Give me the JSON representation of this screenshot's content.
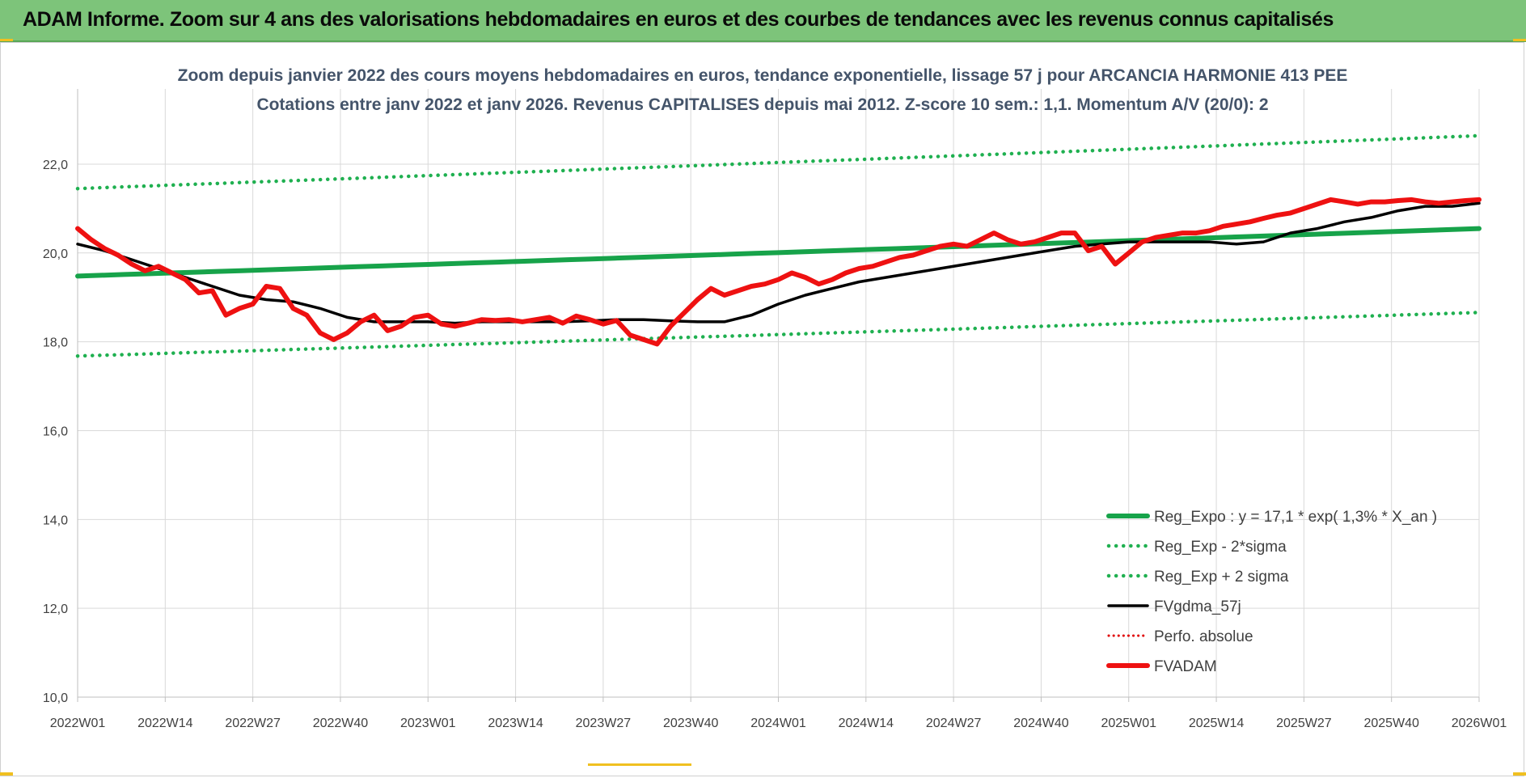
{
  "banner": {
    "title": "ADAM Informe. Zoom sur 4 ans des valorisations hebdomadaires en euros et des courbes de tendances avec les revenus connus capitalisés"
  },
  "colors": {
    "banner_bg": "#7dc47a",
    "reg_expo": "#17a34a",
    "sigma_bands": "#1fb050",
    "fvgdma": "#000000",
    "perfo": "#e00000",
    "fvadam": "#ee1111"
  },
  "chart_data": {
    "type": "line",
    "title": "Zoom depuis janvier 2022 des cours moyens hebdomadaires en euros, tendance exponentielle, lissage 57 j pour ARCANCIA HARMONIE 413 PEE",
    "subtitle": "Cotations entre janv 2022 et janv 2026. Revenus CAPITALISES depuis mai 2012. Z-score 10 sem.: 1,1. Momentum A/V (20/0): 2",
    "x_tick_labels": [
      "2022W01",
      "2022W14",
      "2022W27",
      "2022W40",
      "2023W01",
      "2023W14",
      "2023W27",
      "2023W40",
      "2024W01",
      "2024W14",
      "2024W27",
      "2024W40",
      "2025W01",
      "2025W14",
      "2025W27",
      "2025W40",
      "2026W01"
    ],
    "y_tick_labels": [
      "10,0",
      "12,0",
      "14,0",
      "16,0",
      "18,0",
      "20,0",
      "22,0"
    ],
    "ylim": [
      10,
      22.6
    ],
    "xlim": [
      0,
      208
    ],
    "grid": true,
    "legend_position": "bottom-right",
    "series": [
      {
        "name": "Reg_Expo : y = 17,1 * exp( 1,3% *  X_an )",
        "style": "solid-thick",
        "x": [
          0,
          208
        ],
        "y": [
          19.48,
          20.55
        ],
        "curve": "exponential"
      },
      {
        "name": "Reg_Exp - 2*sigma",
        "style": "dotted",
        "x": [
          0,
          208
        ],
        "y": [
          17.68,
          18.66
        ],
        "curve": "exponential"
      },
      {
        "name": "Reg_Exp + 2 sigma",
        "style": "dotted",
        "x": [
          0,
          208
        ],
        "y": [
          21.45,
          22.64
        ],
        "curve": "exponential"
      },
      {
        "name": "FVgdma_57j",
        "style": "solid",
        "x": [
          0,
          4,
          8,
          12,
          16,
          20,
          24,
          28,
          32,
          36,
          40,
          44,
          48,
          52,
          56,
          60,
          64,
          68,
          72,
          76,
          80,
          84,
          88,
          92,
          96,
          100,
          104,
          108,
          112,
          116,
          120,
          124,
          128,
          132,
          136,
          140,
          144,
          148,
          152,
          156,
          160,
          164,
          168,
          172,
          176,
          180,
          184,
          188,
          192,
          196,
          200,
          204,
          208
        ],
        "y": [
          20.2,
          20.05,
          19.85,
          19.65,
          19.45,
          19.25,
          19.05,
          18.95,
          18.9,
          18.75,
          18.55,
          18.45,
          18.45,
          18.45,
          18.42,
          18.45,
          18.45,
          18.45,
          18.45,
          18.47,
          18.5,
          18.5,
          18.47,
          18.45,
          18.45,
          18.6,
          18.85,
          19.05,
          19.2,
          19.35,
          19.45,
          19.55,
          19.65,
          19.75,
          19.85,
          19.95,
          20.05,
          20.15,
          20.2,
          20.25,
          20.25,
          20.25,
          20.25,
          20.2,
          20.25,
          20.45,
          20.55,
          20.7,
          20.8,
          20.95,
          21.05,
          21.05,
          21.12
        ]
      },
      {
        "name": "Perfo. absolue",
        "style": "dotted",
        "x": [],
        "y": []
      },
      {
        "name": "FVADAM",
        "style": "solid-thick",
        "x": [
          0,
          2,
          4,
          6,
          8,
          10,
          12,
          14,
          16,
          18,
          20,
          22,
          24,
          26,
          28,
          30,
          32,
          34,
          36,
          38,
          40,
          42,
          44,
          46,
          48,
          50,
          52,
          54,
          56,
          58,
          60,
          62,
          64,
          66,
          68,
          70,
          72,
          74,
          76,
          78,
          80,
          82,
          84,
          86,
          88,
          90,
          92,
          94,
          96,
          98,
          100,
          102,
          104,
          106,
          108,
          110,
          112,
          114,
          116,
          118,
          120,
          122,
          124,
          126,
          128,
          130,
          132,
          134,
          136,
          138,
          140,
          142,
          144,
          146,
          148,
          150,
          152,
          154,
          156,
          158,
          160,
          162,
          164,
          166,
          168,
          170,
          172,
          174,
          176,
          178,
          180,
          182,
          184,
          186,
          188,
          190,
          192,
          194,
          196,
          198,
          200,
          202,
          204,
          206,
          208
        ],
        "y": [
          20.55,
          20.3,
          20.1,
          19.95,
          19.75,
          19.6,
          19.7,
          19.55,
          19.4,
          19.1,
          19.15,
          18.6,
          18.75,
          18.85,
          19.25,
          19.2,
          18.75,
          18.6,
          18.2,
          18.05,
          18.2,
          18.45,
          18.6,
          18.25,
          18.35,
          18.55,
          18.6,
          18.4,
          18.35,
          18.42,
          18.5,
          18.48,
          18.5,
          18.45,
          18.5,
          18.55,
          18.42,
          18.58,
          18.5,
          18.4,
          18.48,
          18.15,
          18.05,
          17.95,
          18.35,
          18.65,
          18.95,
          19.2,
          19.05,
          19.15,
          19.25,
          19.3,
          19.4,
          19.55,
          19.45,
          19.3,
          19.4,
          19.55,
          19.65,
          19.7,
          19.8,
          19.9,
          19.95,
          20.05,
          20.15,
          20.2,
          20.15,
          20.3,
          20.45,
          20.3,
          20.2,
          20.25,
          20.35,
          20.45,
          20.45,
          20.05,
          20.15,
          19.75,
          20.0,
          20.25,
          20.35,
          20.4,
          20.45,
          20.45,
          20.5,
          20.6,
          20.65,
          20.7,
          20.78,
          20.85,
          20.9,
          21.0,
          21.1,
          21.2,
          21.15,
          21.1,
          21.15,
          21.15,
          21.18,
          21.2,
          21.15,
          21.12,
          21.15,
          21.18,
          21.2
        ]
      }
    ]
  }
}
